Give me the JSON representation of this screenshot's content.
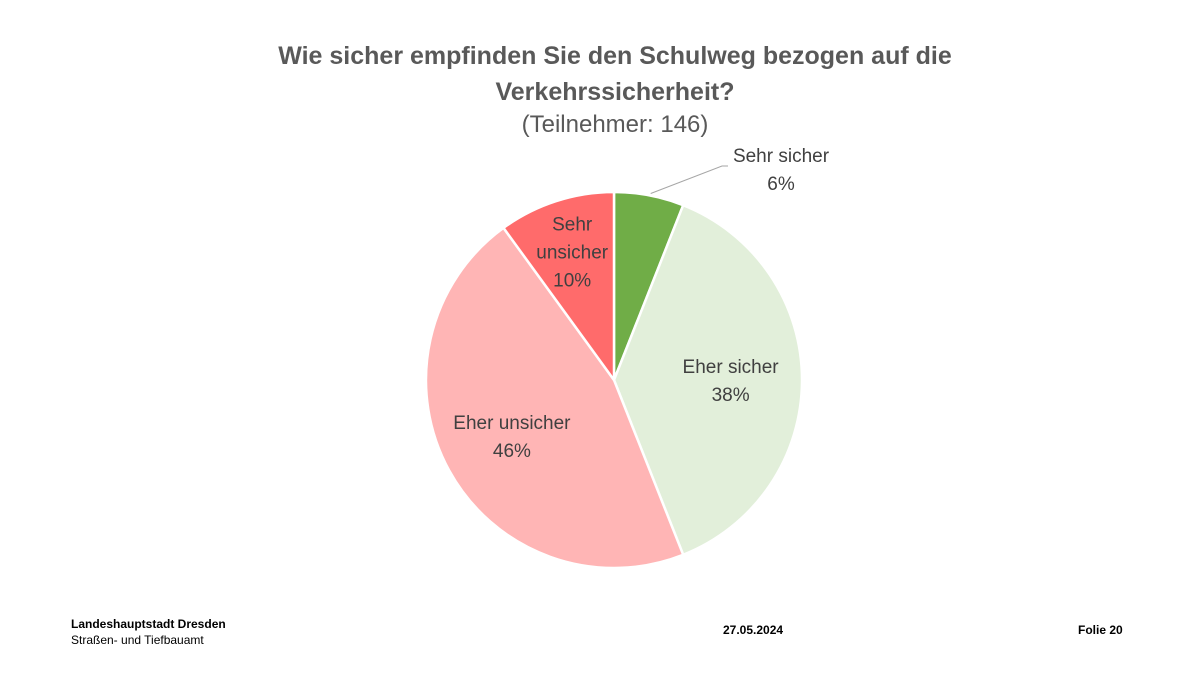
{
  "slide": {
    "title_line1": "Wie sicher empfinden Sie den Schulweg bezogen auf die",
    "title_line2": "Verkehrssicherheit?",
    "subtitle": "(Teilnehmer: 146)"
  },
  "chart_data": {
    "type": "pie",
    "title": "Wie sicher empfinden Sie den Schulweg bezogen auf die Verkehrssicherheit?",
    "subtitle": "(Teilnehmer: 146)",
    "start_angle_deg": 0,
    "direction": "clockwise",
    "slices": [
      {
        "label": "Sehr sicher",
        "value": 6,
        "display": "6%",
        "color": "#70AD47",
        "label_position": "outside-callout"
      },
      {
        "label": "Eher sicher",
        "value": 38,
        "display": "38%",
        "color": "#E2EFDA",
        "label_position": "inside"
      },
      {
        "label": "Eher unsicher",
        "value": 46,
        "display": "46%",
        "color": "#FFB5B5",
        "label_position": "inside"
      },
      {
        "label": "Sehr unsicher",
        "value": 10,
        "display": "10%",
        "color": "#FF6B6B",
        "label_position": "inside"
      }
    ]
  },
  "footer": {
    "organization": "Landeshauptstadt Dresden",
    "department": "Straßen- und Tiefbauamt",
    "date": "27.05.2024",
    "slide_number": "Folie 20"
  }
}
